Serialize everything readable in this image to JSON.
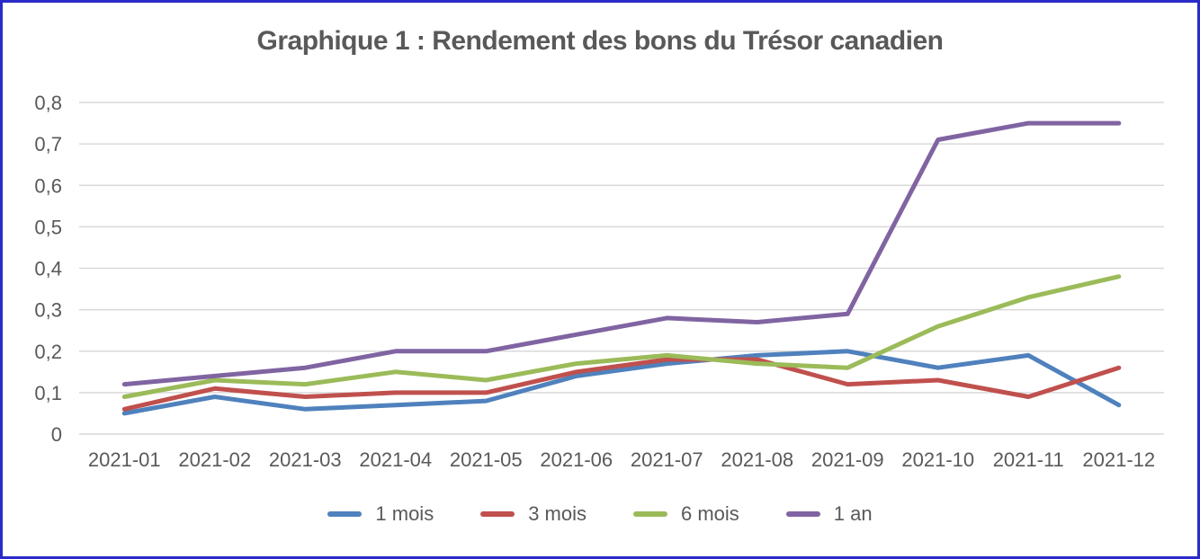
{
  "chart_data": {
    "type": "line",
    "title": "Graphique 1 : Rendement des bons du Trésor canadien",
    "categories": [
      "2021-01",
      "2021-02",
      "2021-03",
      "2021-04",
      "2021-05",
      "2021-06",
      "2021-07",
      "2021-08",
      "2021-09",
      "2021-10",
      "2021-11",
      "2021-12"
    ],
    "series": [
      {
        "name": "1 mois",
        "color": "#4F81BD",
        "values": [
          0.05,
          0.09,
          0.06,
          0.07,
          0.08,
          0.14,
          0.17,
          0.19,
          0.2,
          0.16,
          0.19,
          0.07
        ]
      },
      {
        "name": "3 mois",
        "color": "#C0504D",
        "values": [
          0.06,
          0.11,
          0.09,
          0.1,
          0.1,
          0.15,
          0.18,
          0.18,
          0.12,
          0.13,
          0.09,
          0.16
        ]
      },
      {
        "name": "6 mois",
        "color": "#9BBB59",
        "values": [
          0.09,
          0.13,
          0.12,
          0.15,
          0.13,
          0.17,
          0.19,
          0.17,
          0.16,
          0.26,
          0.33,
          0.38
        ]
      },
      {
        "name": "1 an",
        "color": "#8064A2",
        "values": [
          0.12,
          0.14,
          0.16,
          0.2,
          0.2,
          0.24,
          0.28,
          0.27,
          0.29,
          0.71,
          0.75,
          0.75
        ]
      }
    ],
    "y_axis": {
      "min": 0,
      "max": 0.8,
      "step": 0.1,
      "tick_labels": [
        "0",
        "0,1",
        "0,2",
        "0,3",
        "0,4",
        "0,5",
        "0,6",
        "0,7",
        "0,8"
      ]
    },
    "xlabel": "",
    "ylabel": "",
    "grid": true,
    "legend_position": "bottom",
    "text_color": "#595959",
    "gridline_color": "#d9d9d9"
  }
}
